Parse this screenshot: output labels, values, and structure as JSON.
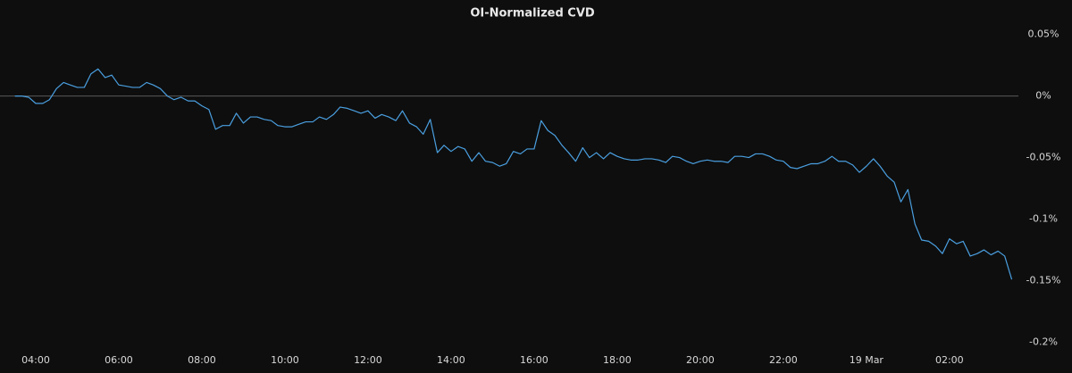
{
  "chart_data": {
    "type": "line",
    "title": "OI-Normalized CVD",
    "x": [
      3.5,
      3.67,
      3.83,
      4,
      4.17,
      4.33,
      4.5,
      4.67,
      4.83,
      5,
      5.17,
      5.33,
      5.5,
      5.67,
      5.83,
      6,
      6.17,
      6.33,
      6.5,
      6.67,
      6.83,
      7,
      7.17,
      7.33,
      7.5,
      7.67,
      7.83,
      8,
      8.17,
      8.33,
      8.5,
      8.67,
      8.83,
      9,
      9.17,
      9.33,
      9.5,
      9.67,
      9.83,
      10,
      10.17,
      10.33,
      10.5,
      10.67,
      10.83,
      11,
      11.17,
      11.33,
      11.5,
      11.67,
      11.83,
      12,
      12.17,
      12.33,
      12.5,
      12.67,
      12.83,
      13,
      13.17,
      13.33,
      13.5,
      13.67,
      13.83,
      14,
      14.17,
      14.33,
      14.5,
      14.67,
      14.83,
      15,
      15.17,
      15.33,
      15.5,
      15.67,
      15.83,
      16,
      16.17,
      16.33,
      16.5,
      16.67,
      16.83,
      17,
      17.17,
      17.33,
      17.5,
      17.67,
      17.83,
      18,
      18.17,
      18.33,
      18.5,
      18.67,
      18.83,
      19,
      19.17,
      19.33,
      19.5,
      19.67,
      19.83,
      20,
      20.17,
      20.33,
      20.5,
      20.67,
      20.83,
      21,
      21.17,
      21.33,
      21.5,
      21.67,
      21.83,
      22,
      22.17,
      22.33,
      22.5,
      22.67,
      22.83,
      23,
      23.17,
      23.33,
      23.5,
      23.67,
      23.83,
      24,
      24.17,
      24.33,
      24.5,
      24.67,
      24.83,
      25,
      25.17,
      25.33,
      25.5,
      25.67,
      25.83,
      26,
      26.17,
      26.33,
      26.5,
      26.67,
      26.83,
      27,
      27.17,
      27.33,
      27.5
    ],
    "series": [
      {
        "color": "#4a9fe0",
        "values": [
          0,
          0,
          -0.001,
          -0.006,
          -0.006,
          -0.003,
          0.006,
          0.011,
          0.009,
          0.007,
          0.007,
          0.018,
          0.022,
          0.015,
          0.017,
          0.009,
          0.008,
          0.007,
          0.007,
          0.011,
          0.009,
          0.006,
          0,
          -0.003,
          -0.001,
          -0.004,
          -0.004,
          -0.008,
          -0.011,
          -0.027,
          -0.024,
          -0.024,
          -0.014,
          -0.022,
          -0.017,
          -0.017,
          -0.019,
          -0.02,
          -0.024,
          -0.025,
          -0.025,
          -0.023,
          -0.021,
          -0.021,
          -0.017,
          -0.019,
          -0.015,
          -0.009,
          -0.01,
          -0.012,
          -0.014,
          -0.012,
          -0.018,
          -0.015,
          -0.017,
          -0.02,
          -0.012,
          -0.022,
          -0.025,
          -0.031,
          -0.019,
          -0.046,
          -0.04,
          -0.045,
          -0.041,
          -0.043,
          -0.053,
          -0.046,
          -0.053,
          -0.054,
          -0.057,
          -0.055,
          -0.045,
          -0.047,
          -0.043,
          -0.043,
          -0.02,
          -0.028,
          -0.032,
          -0.04,
          -0.046,
          -0.053,
          -0.042,
          -0.05,
          -0.046,
          -0.051,
          -0.046,
          -0.049,
          -0.051,
          -0.052,
          -0.052,
          -0.051,
          -0.051,
          -0.052,
          -0.054,
          -0.049,
          -0.05,
          -0.053,
          -0.055,
          -0.053,
          -0.052,
          -0.053,
          -0.053,
          -0.054,
          -0.049,
          -0.049,
          -0.05,
          -0.047,
          -0.047,
          -0.049,
          -0.052,
          -0.053,
          -0.058,
          -0.059,
          -0.057,
          -0.055,
          -0.055,
          -0.053,
          -0.049,
          -0.053,
          -0.053,
          -0.056,
          -0.062,
          -0.057,
          -0.051,
          -0.057,
          -0.065,
          -0.07,
          -0.086,
          -0.076,
          -0.104,
          -0.117,
          -0.118,
          -0.122,
          -0.128,
          -0.116,
          -0.12,
          -0.118,
          -0.13,
          -0.128,
          -0.125,
          -0.129,
          -0.126,
          -0.13,
          -0.149
        ]
      }
    ],
    "xlim": [
      3.14,
      27.66
    ],
    "xticks": [
      {
        "value": 4,
        "label": "04:00"
      },
      {
        "value": 6,
        "label": "06:00"
      },
      {
        "value": 8,
        "label": "08:00"
      },
      {
        "value": 10,
        "label": "10:00"
      },
      {
        "value": 12,
        "label": "12:00"
      },
      {
        "value": 14,
        "label": "14:00"
      },
      {
        "value": 16,
        "label": "16:00"
      },
      {
        "value": 18,
        "label": "18:00"
      },
      {
        "value": 20,
        "label": "20:00"
      },
      {
        "value": 22,
        "label": "22:00"
      },
      {
        "value": 24,
        "label": "19 Mar"
      },
      {
        "value": 26,
        "label": "02:00"
      }
    ],
    "ylim": [
      0.078,
      -0.225
    ],
    "yticks": [
      {
        "value": 0.05,
        "label": "0.05%"
      },
      {
        "value": 0,
        "label": "0%"
      },
      {
        "value": -0.05,
        "label": "-0.05%"
      },
      {
        "value": -0.1,
        "label": "-0.1%"
      },
      {
        "value": -0.15,
        "label": "-0.15%"
      },
      {
        "value": -0.2,
        "label": "-0.2%"
      }
    ],
    "zero_line": true
  }
}
